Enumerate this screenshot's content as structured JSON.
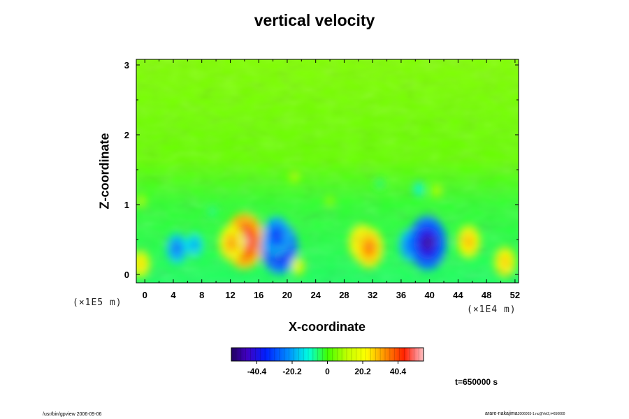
{
  "chart_data": {
    "type": "heatmap",
    "title": "vertical velocity",
    "xlabel": "X-coordinate",
    "ylabel": "Z-coordinate",
    "x_unit_label": "(×1E4 m)",
    "y_unit_label": "(×1E5 m)",
    "x_ticks": [
      "0",
      "4",
      "8",
      "12",
      "16",
      "20",
      "24",
      "28",
      "32",
      "36",
      "40",
      "44",
      "48",
      "52"
    ],
    "y_ticks": [
      "0",
      "1",
      "2",
      "3"
    ],
    "xlim": [
      -1.2,
      52.5
    ],
    "ylim": [
      -0.12,
      3.08
    ],
    "colorbar": {
      "ticks": [
        "-40.4",
        "-20.2",
        "0",
        "20.2",
        "40.4"
      ],
      "tick_values": [
        -40.4,
        -20.2,
        0,
        20.2,
        40.4
      ],
      "range": [
        -55,
        55
      ]
    },
    "features": [
      {
        "x": 4.5,
        "z": 0.37,
        "value": -28
      },
      {
        "x": 7.0,
        "z": 0.42,
        "value": -22
      },
      {
        "x": 14.0,
        "z": 0.48,
        "value": 52
      },
      {
        "x": 12.2,
        "z": 0.45,
        "value": 33
      },
      {
        "x": 18.9,
        "z": 0.38,
        "value": -48
      },
      {
        "x": 18.5,
        "z": 0.55,
        "value": -36
      },
      {
        "x": 30.5,
        "z": 0.45,
        "value": 34
      },
      {
        "x": 31.5,
        "z": 0.38,
        "value": 37
      },
      {
        "x": 37.3,
        "z": 0.42,
        "value": -30
      },
      {
        "x": 39.7,
        "z": 0.45,
        "value": -50
      },
      {
        "x": 45.5,
        "z": 0.47,
        "value": 30
      },
      {
        "x": 50.6,
        "z": 0.18,
        "value": 28
      },
      {
        "x": 21.5,
        "z": 0.12,
        "value": 18
      },
      {
        "x": 21.0,
        "z": 1.4,
        "value": 12
      },
      {
        "x": 41.0,
        "z": 1.2,
        "value": 13
      },
      {
        "x": 38.5,
        "z": 1.22,
        "value": -14
      },
      {
        "x": 26.0,
        "z": 1.05,
        "value": 8
      },
      {
        "x": 9.5,
        "z": 0.9,
        "value": -8
      },
      {
        "x": 33.0,
        "z": 1.3,
        "value": -7
      },
      {
        "x": -0.6,
        "z": 0.15,
        "value": 25
      },
      {
        "x": -0.5,
        "z": 1.05,
        "value": 12
      }
    ]
  },
  "annotations": {
    "time": "t=650000 s",
    "footer_left": "/usr/bin/gpview 2006-09-06",
    "footer_right": "arare-nakajima",
    "footer_right_suffix": "2006003-1.nc@Vel2,t=650000"
  }
}
